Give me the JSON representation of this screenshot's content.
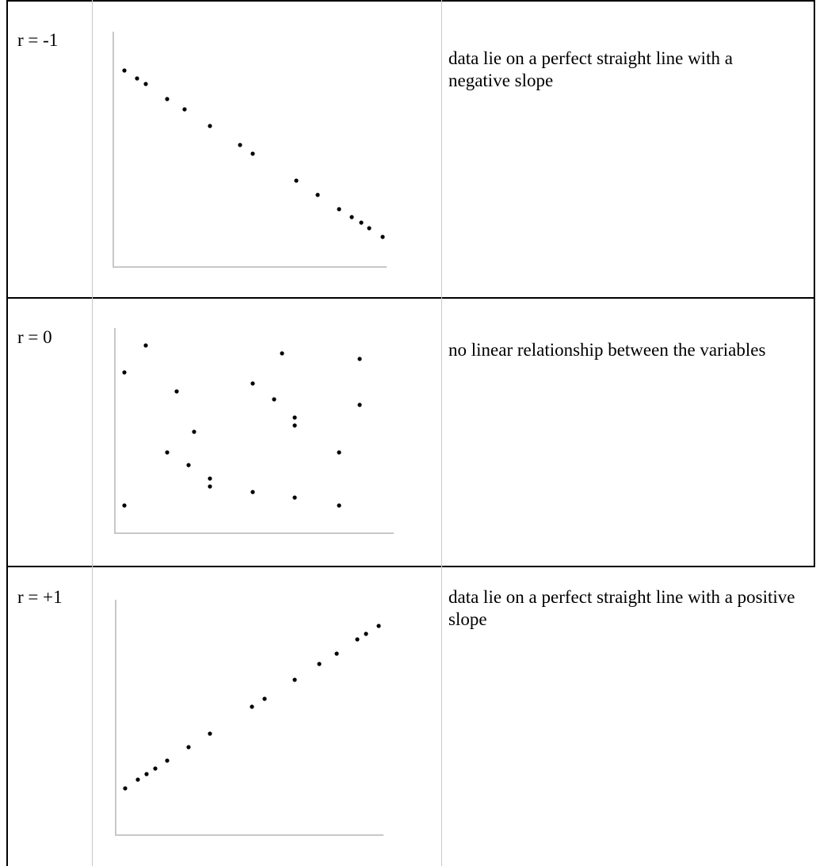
{
  "rows": [
    {
      "label": "r = -1",
      "description": "data lie on a perfect straight line with a negative slope",
      "chart_data": {
        "type": "scatter",
        "title": "",
        "xlabel": "",
        "ylabel": "",
        "grid": false,
        "points": [
          [
            157,
            89
          ],
          [
            173,
            99
          ],
          [
            184,
            106
          ],
          [
            211,
            125
          ],
          [
            233,
            138
          ],
          [
            265,
            159
          ],
          [
            303,
            183
          ],
          [
            319,
            194
          ],
          [
            374,
            228
          ],
          [
            401,
            246
          ],
          [
            428,
            264
          ],
          [
            444,
            274
          ],
          [
            456,
            281
          ],
          [
            466,
            288
          ],
          [
            483,
            299
          ]
        ]
      }
    },
    {
      "label": "r = 0",
      "description": "no linear relationship between the variables",
      "chart_data": {
        "type": "scatter",
        "title": "",
        "xlabel": "",
        "ylabel": "",
        "grid": false,
        "points": [
          [
            184,
            436
          ],
          [
            356,
            446
          ],
          [
            454,
            453
          ],
          [
            157,
            470
          ],
          [
            319,
            484
          ],
          [
            223,
            494
          ],
          [
            346,
            504
          ],
          [
            454,
            511
          ],
          [
            372,
            527
          ],
          [
            372,
            537
          ],
          [
            245,
            545
          ],
          [
            211,
            571
          ],
          [
            428,
            571
          ],
          [
            238,
            587
          ],
          [
            265,
            604
          ],
          [
            265,
            614
          ],
          [
            319,
            621
          ],
          [
            372,
            628
          ],
          [
            157,
            638
          ],
          [
            428,
            638
          ]
        ]
      }
    },
    {
      "label": "r = +1",
      "description": "data lie on a perfect straight line with a positive slope",
      "chart_data": {
        "type": "scatter",
        "title": "",
        "xlabel": "",
        "ylabel": "",
        "grid": false,
        "points": [
          [
            478,
            790
          ],
          [
            462,
            800
          ],
          [
            451,
            807
          ],
          [
            425,
            825
          ],
          [
            403,
            838
          ],
          [
            372,
            858
          ],
          [
            334,
            882
          ],
          [
            318,
            892
          ],
          [
            265,
            926
          ],
          [
            238,
            943
          ],
          [
            211,
            960
          ],
          [
            196,
            970
          ],
          [
            185,
            977
          ],
          [
            174,
            984
          ],
          [
            158,
            995
          ]
        ]
      }
    }
  ]
}
